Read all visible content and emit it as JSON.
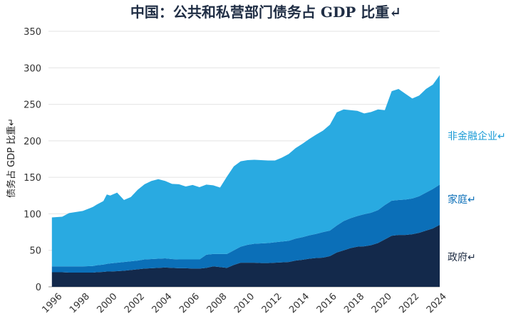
{
  "chart_data": {
    "type": "area",
    "stacked": true,
    "title": "中国：公共和私营部门债务占 GDP 比重↵",
    "ylabel": "债务占 GDP 比重↵",
    "xlabel": "",
    "xlim": [
      1995.5,
      2024
    ],
    "ylim": [
      0,
      350
    ],
    "yticks": [
      0,
      50,
      100,
      150,
      200,
      250,
      300,
      350
    ],
    "xticks": [
      "1996",
      "1998",
      "2000",
      "2002",
      "2004",
      "2006",
      "2008",
      "2010",
      "2012",
      "2014",
      "2016",
      "2018",
      "2020",
      "2022",
      "2024"
    ],
    "grid": true,
    "legend": "inline-right",
    "x": [
      1995.75,
      1996.5,
      1997,
      1998,
      1998.75,
      1999,
      1999.5,
      1999.75,
      2000,
      2000.5,
      2001,
      2001.5,
      2002,
      2002.5,
      2003,
      2003.5,
      2004,
      2004.5,
      2005,
      2005.5,
      2006,
      2006.5,
      2007,
      2007.5,
      2008,
      2008.5,
      2009,
      2009.5,
      2010,
      2010.5,
      2011,
      2011.5,
      2012,
      2012.5,
      2013,
      2013.5,
      2014,
      2014.5,
      2015,
      2015.5,
      2016,
      2016.5,
      2017,
      2017.5,
      2018,
      2018.5,
      2019,
      2019.5,
      2020,
      2020.5,
      2021,
      2021.5,
      2022,
      2022.5,
      2023,
      2023.5,
      2024
    ],
    "series": [
      {
        "name": "政府↵",
        "color": "#13294b",
        "label_color": "#1f2d44",
        "values": [
          20,
          20,
          19.5,
          19.5,
          19.5,
          20,
          20.5,
          21,
          21,
          21.5,
          22,
          23,
          24,
          25,
          25.5,
          26,
          26.5,
          26,
          25.5,
          25.5,
          25,
          25,
          26,
          28,
          27,
          26,
          30,
          33,
          33,
          33,
          32.5,
          32.5,
          33,
          33.5,
          34,
          36,
          37,
          38.5,
          39.5,
          40,
          42,
          47,
          50,
          53,
          55,
          55.5,
          57,
          60,
          65,
          70,
          71,
          71,
          72,
          74,
          77,
          80,
          85
        ]
      },
      {
        "name": "家庭↵",
        "color": "#0b6fb8",
        "label_color": "#0b6fb8",
        "values": [
          8,
          8,
          8.5,
          8.5,
          9,
          9.5,
          10,
          10.5,
          11,
          11.5,
          12,
          12,
          12,
          12.5,
          12.5,
          12.5,
          12.5,
          12,
          12,
          12,
          12.5,
          12.5,
          18,
          17,
          18,
          19,
          20,
          22,
          24.5,
          26,
          27,
          27.5,
          28,
          28.5,
          29,
          30,
          31,
          32,
          33,
          35,
          35,
          37,
          40,
          41,
          42,
          44,
          44.5,
          45,
          47,
          48,
          48,
          48.5,
          49,
          50,
          52,
          54,
          55
        ]
      },
      {
        "name": "非金融企业↵",
        "color": "#29aae1",
        "label_color": "#1a9bd6",
        "values": [
          67,
          68,
          73,
          76,
          81,
          83,
          87,
          95,
          93,
          96,
          85,
          88,
          97,
          103,
          107,
          109,
          106,
          103,
          103,
          100,
          102,
          99,
          96,
          94,
          91,
          106,
          115,
          117,
          116,
          115,
          114,
          113,
          112,
          115,
          119,
          124,
          128,
          132,
          136,
          139,
          145,
          155,
          153,
          148,
          144,
          138,
          138,
          138,
          130,
          150,
          152,
          145,
          137,
          138,
          142,
          143,
          150
        ]
      }
    ]
  }
}
